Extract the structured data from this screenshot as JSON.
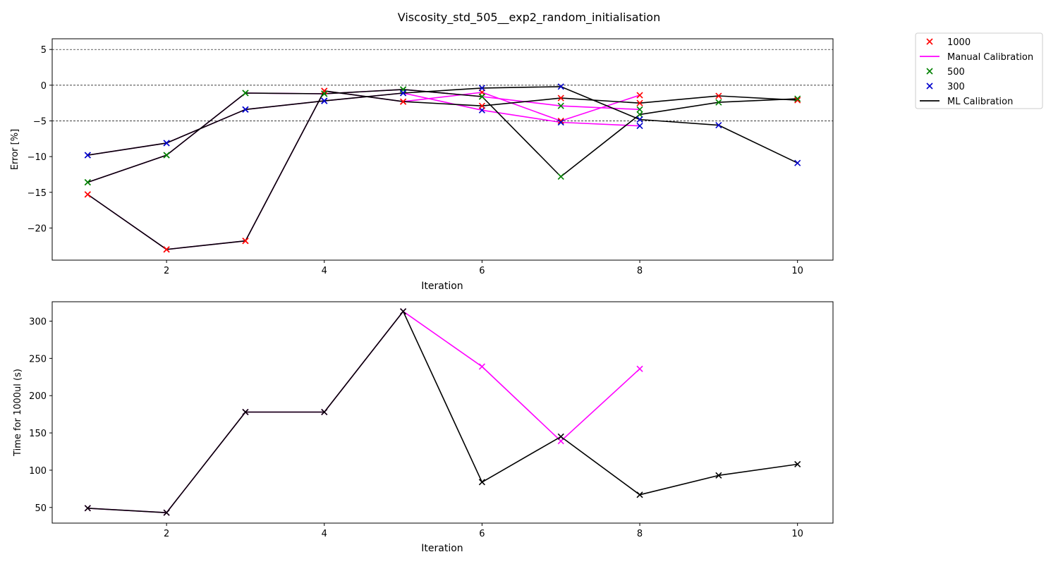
{
  "title": "Viscosity_std_505__exp2_random_initialisation",
  "colors": {
    "manual": "#ff00ff",
    "ml": "#000000",
    "vol1000": "#ff0000",
    "vol500": "#008000",
    "vol300": "#0000cc"
  },
  "legend": {
    "placement": "outside-right",
    "items": [
      {
        "label": "1000",
        "kind": "marker",
        "color": "#ff0000"
      },
      {
        "label": "Manual Calibration",
        "kind": "line",
        "color": "#ff00ff"
      },
      {
        "label": "500",
        "kind": "marker",
        "color": "#008000"
      },
      {
        "label": "300",
        "kind": "marker",
        "color": "#0000cc"
      },
      {
        "label": "ML Calibration",
        "kind": "line",
        "color": "#000000"
      }
    ]
  },
  "chart_data": [
    {
      "type": "line",
      "xlabel": "Iteration",
      "ylabel": "Error [%]",
      "xlim": [
        0.55,
        10.45
      ],
      "ylim": [
        -24.5,
        6.5
      ],
      "xticks": [
        2,
        4,
        6,
        8,
        10
      ],
      "yticks": [
        5,
        0,
        -5,
        -10,
        -15,
        -20
      ],
      "ytick_labels": [
        "5",
        "0",
        "−5",
        "−10",
        "−15",
        "−20"
      ],
      "hlines": [
        5,
        0,
        -5
      ],
      "series": [
        {
          "method": "manual",
          "volume": "1000",
          "x": [
            1,
            2,
            3,
            4,
            5,
            6,
            7,
            8
          ],
          "y": [
            -15.3,
            -23.0,
            -21.8,
            -0.8,
            -2.3,
            -1.0,
            -5.0,
            -1.4
          ]
        },
        {
          "method": "manual",
          "volume": "500",
          "x": [
            1,
            2,
            3,
            4,
            5,
            6,
            7,
            8
          ],
          "y": [
            -13.6,
            -9.8,
            -1.1,
            -1.2,
            -0.6,
            -1.6,
            -2.9,
            -3.4
          ]
        },
        {
          "method": "manual",
          "volume": "300",
          "x": [
            1,
            2,
            3,
            4,
            5,
            6,
            7,
            8
          ],
          "y": [
            -9.8,
            -8.1,
            -3.4,
            -2.2,
            -1.1,
            -3.5,
            -5.2,
            -5.7
          ]
        },
        {
          "method": "ml",
          "volume": "1000",
          "x": [
            1,
            2,
            3,
            4,
            5,
            6,
            7,
            8,
            9,
            10
          ],
          "y": [
            -15.3,
            -23.0,
            -21.8,
            -0.8,
            -2.3,
            -2.9,
            -1.8,
            -2.5,
            -1.5,
            -2.1
          ]
        },
        {
          "method": "ml",
          "volume": "500",
          "x": [
            1,
            2,
            3,
            4,
            5,
            6,
            7,
            8,
            9,
            10
          ],
          "y": [
            -13.6,
            -9.8,
            -1.1,
            -1.2,
            -0.6,
            -1.6,
            -12.8,
            -4.1,
            -2.4,
            -1.9
          ]
        },
        {
          "method": "ml",
          "volume": "300",
          "x": [
            1,
            2,
            3,
            4,
            5,
            6,
            7,
            8,
            9,
            10
          ],
          "y": [
            -9.8,
            -8.1,
            -3.4,
            -2.2,
            -1.1,
            -0.4,
            -0.2,
            -4.8,
            -5.6,
            -10.9
          ]
        }
      ]
    },
    {
      "type": "line",
      "xlabel": "Iteration",
      "ylabel": "Time for 1000ul (s)",
      "xlim": [
        0.55,
        10.45
      ],
      "ylim": [
        29,
        326
      ],
      "xticks": [
        2,
        4,
        6,
        8,
        10
      ],
      "yticks": [
        300,
        250,
        200,
        150,
        100,
        50
      ],
      "ytick_labels": [
        "300",
        "250",
        "200",
        "150",
        "100",
        "50"
      ],
      "hlines": [],
      "series": [
        {
          "method": "manual",
          "x": [
            1,
            2,
            3,
            4,
            5,
            6,
            7,
            8
          ],
          "y": [
            49,
            43,
            178,
            178,
            313,
            239,
            139,
            236
          ]
        },
        {
          "method": "ml",
          "x": [
            1,
            2,
            3,
            4,
            5,
            6,
            7,
            8,
            9,
            10
          ],
          "y": [
            49,
            43,
            178,
            178,
            313,
            84,
            145,
            67,
            93,
            108
          ]
        }
      ]
    }
  ]
}
